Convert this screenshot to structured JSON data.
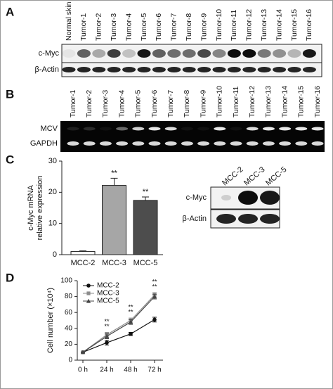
{
  "panel_labels": [
    "A",
    "B",
    "C",
    "D"
  ],
  "blot_a": {
    "lanes": [
      "Normal skin",
      "Tumor-1",
      "Tumor-2",
      "Tumor-3",
      "Tumor-4",
      "Tumor-5",
      "Tumor-6",
      "Tumor-7",
      "Tumor-8",
      "Tumor-9",
      "Tumor-10",
      "Tumor-11",
      "Tumor-12",
      "Tumor-13",
      "Tumor-14",
      "Tumor-15",
      "Tumor-16"
    ],
    "rows": [
      "c-Myc",
      "β-Actin"
    ]
  },
  "blot_b": {
    "lanes": [
      "Tumor-1",
      "Tumor-2",
      "Tumor-3",
      "Tumor-4",
      "Tumor-5",
      "Tumor-6",
      "Tumor-7",
      "Tumor-8",
      "Tumor-9",
      "Tumor-10",
      "Tumor-11",
      "Tumor-12",
      "Tumor-13",
      "Tumor-14",
      "Tumor-15",
      "Tumor-16"
    ],
    "rows": [
      "MCV",
      "GAPDH"
    ]
  },
  "blot_c": {
    "lanes": [
      "MCC-2",
      "MCC-3",
      "MCC-5"
    ],
    "rows": [
      "c-Myc",
      "β-Actin"
    ]
  },
  "chart_data": [
    {
      "type": "bar",
      "ylabel": "c-Myc mRNA relative expression",
      "categories": [
        "MCC-2",
        "MCC-3",
        "MCC-5"
      ],
      "values": [
        1,
        22.2,
        17.4
      ],
      "errors": [
        0.2,
        2.3,
        1.1
      ],
      "colors": [
        "#ffffff",
        "#a6a6a6",
        "#4d4d4d"
      ],
      "annotations": [
        null,
        "**",
        "**"
      ],
      "ylim": [
        0,
        30
      ],
      "yticks": [
        0,
        10,
        20,
        30
      ]
    },
    {
      "type": "line",
      "ylabel": "Cell number (×10⁴)",
      "categories": [
        "0 h",
        "24 h",
        "48 h",
        "72 h"
      ],
      "series": [
        {
          "name": "MCC-2",
          "color": "#111111",
          "marker": "circle",
          "values": [
            10,
            22,
            33,
            51
          ],
          "errors": [
            0.5,
            3,
            2,
            3
          ]
        },
        {
          "name": "MCC-3",
          "color": "#8c8c8c",
          "marker": "square",
          "values": [
            10,
            32,
            50,
            82
          ],
          "errors": [
            0.5,
            3,
            3,
            3
          ]
        },
        {
          "name": "MCC-5",
          "color": "#444444",
          "marker": "triangle",
          "values": [
            10,
            30,
            48,
            80
          ],
          "errors": [
            0.5,
            3,
            3,
            3
          ]
        }
      ],
      "annotations": [
        null,
        "**",
        "**",
        "**"
      ],
      "ylim": [
        0,
        100
      ],
      "yticks": [
        0,
        20,
        40,
        60,
        80,
        100
      ],
      "legend": "upper left"
    }
  ]
}
